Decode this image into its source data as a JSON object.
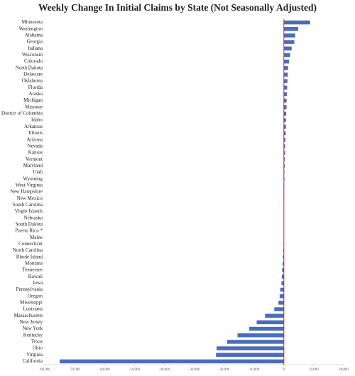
{
  "chart_data": {
    "type": "hbar",
    "title": "Weekly Change In Initial Claims by State (Not Seasonally Adjusted)",
    "categories": [
      "Minnesota",
      "Washington",
      "Alabama",
      "Georgia",
      "Indiana",
      "Wisconsin",
      "Colorado",
      "North Dakota",
      "Delaware",
      "Oklahoma",
      "Florida",
      "Alaska",
      "Michigan",
      "Missouri",
      "District of Columbia",
      "Idaho",
      "Arkansas",
      "Illinois",
      "Arizona",
      "Nevada",
      "Kansas",
      "Vermont",
      "Maryland",
      "Utah",
      "Wyoming",
      "West Virginia",
      "New Hampshire",
      "New Mexico",
      "South Carolina",
      "Virgin Islands",
      "Nebraska",
      "South Dakota",
      "Puerto Rico *",
      "Maine",
      "Connecticut",
      "North Carolina",
      "Rhode Island",
      "Montana",
      "Tennessee",
      "Hawaii",
      "Iowa",
      "Pennsylvania",
      "Oregon",
      "Mississippi",
      "Louisiana",
      "Massachusetts",
      "New Jersey",
      "New York",
      "Kentucky",
      "Texas",
      "Ohio",
      "Virginia",
      "California"
    ],
    "values": [
      8800,
      4800,
      3800,
      3500,
      2600,
      2100,
      1700,
      1400,
      1300,
      1200,
      1100,
      1000,
      900,
      900,
      800,
      700,
      700,
      600,
      500,
      400,
      400,
      300,
      300,
      200,
      200,
      150,
      100,
      100,
      50,
      0,
      0,
      0,
      0,
      -50,
      -100,
      -200,
      -300,
      -400,
      -600,
      -700,
      -800,
      -1200,
      -1400,
      -1800,
      -3200,
      -6300,
      -9100,
      -11600,
      -15500,
      -19000,
      -22500,
      -22700,
      -75000
    ],
    "color": "#4a6cbd",
    "xlim": [
      -80000,
      20000
    ],
    "xticks": [
      {
        "value": -80000,
        "label": "-80,000"
      },
      {
        "value": -70000,
        "label": "-70,000"
      },
      {
        "value": -60000,
        "label": "-60,000"
      },
      {
        "value": -50000,
        "label": "-50,000"
      },
      {
        "value": -40000,
        "label": "-40,000"
      },
      {
        "value": -30000,
        "label": "-30,000"
      },
      {
        "value": -20000,
        "label": "-20,000"
      },
      {
        "value": -10000,
        "label": "-10,000"
      },
      0,
      {
        "value": 10000,
        "label": "10,000"
      },
      {
        "value": 20000,
        "label": "20,000"
      }
    ]
  }
}
